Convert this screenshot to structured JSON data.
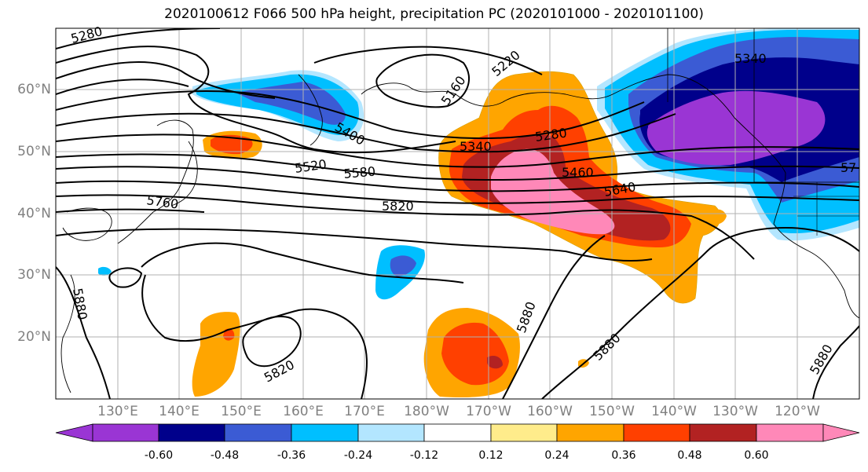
{
  "title": "2020100612 F066 500 hPa height, precipitation PC (2020101000 - 2020101100)",
  "lon_labels": [
    "130°E",
    "140°E",
    "150°E",
    "160°E",
    "170°E",
    "180°W",
    "170°W",
    "160°W",
    "150°W",
    "140°W",
    "130°W",
    "120°W"
  ],
  "lat_labels": [
    "60°N",
    "50°N",
    "40°N",
    "30°N",
    "20°N"
  ],
  "contour_labels": [
    "5280",
    "5160",
    "5220",
    "5340",
    "5400",
    "5340",
    "5280",
    "5520",
    "5580",
    "5460",
    "5640",
    "5760",
    "5820",
    "5880",
    "5880",
    "5820",
    "5880",
    "5880",
    "57"
  ],
  "colorbar": {
    "colors": [
      "#9a35d4",
      "#00008b",
      "#3b5bd4",
      "#00bfff",
      "#b3e6ff",
      "#ffffff",
      "#ffec8b",
      "#ffa500",
      "#ff4000",
      "#b22222",
      "#ff88b8"
    ],
    "tick_labels": [
      "-0.60",
      "-0.48",
      "-0.36",
      "-0.24",
      "-0.12",
      "0.12",
      "0.24",
      "0.36",
      "0.48",
      "0.60"
    ]
  }
}
